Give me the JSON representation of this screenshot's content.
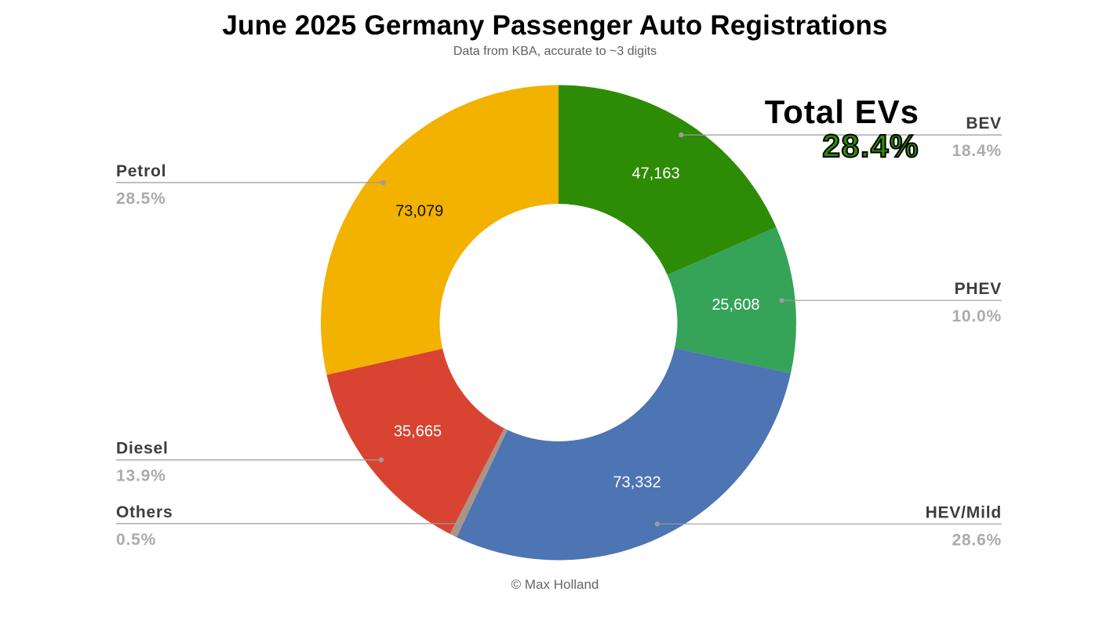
{
  "title": "June 2025 Germany Passenger Auto Registrations",
  "subtitle": "Data from KBA, accurate to ~3 digits",
  "footer": "© Max Holland",
  "chart_data": {
    "type": "pie",
    "variant": "donut",
    "title": "June 2025 Germany Passenger Auto Registrations",
    "subtitle": "Data from KBA, accurate to ~3 digits",
    "start_angle_deg": 0,
    "direction": "clockwise",
    "slices": [
      {
        "name": "BEV",
        "value": 47163,
        "value_label": "47,163",
        "pct": 18.4,
        "pct_label": "18.4%",
        "color": "#2e8b06",
        "value_text_color": "#ffffff",
        "label_side": "right"
      },
      {
        "name": "PHEV",
        "value": 25608,
        "value_label": "25,608",
        "pct": 10.0,
        "pct_label": "10.0%",
        "color": "#35a358",
        "value_text_color": "#ffffff",
        "label_side": "right"
      },
      {
        "name": "HEV/Mild",
        "value": 73332,
        "value_label": "73,332",
        "pct": 28.6,
        "pct_label": "28.6%",
        "color": "#4d74b3",
        "value_text_color": "#ffffff",
        "label_side": "right"
      },
      {
        "name": "Others",
        "value": null,
        "value_label": "",
        "pct": 0.5,
        "pct_label": "0.5%",
        "color": "#ab9486",
        "value_text_color": "#ffffff",
        "label_side": "left"
      },
      {
        "name": "Diesel",
        "value": 35665,
        "value_label": "35,665",
        "pct": 13.9,
        "pct_label": "13.9%",
        "color": "#d94332",
        "value_text_color": "#ffffff",
        "label_side": "left"
      },
      {
        "name": "Petrol",
        "value": 73079,
        "value_label": "73,079",
        "pct": 28.5,
        "pct_label": "28.5%",
        "color": "#f3b100",
        "value_text_color": "#111111",
        "label_side": "left"
      }
    ],
    "annotation": {
      "label": "Total EVs",
      "value": "28.4%",
      "color": "#2e8b06"
    },
    "legend_position": "callout-labels",
    "colors": {
      "category_label": "#3d3d3d",
      "percent_label": "#ababab",
      "callout": "#9b9b9b"
    }
  }
}
